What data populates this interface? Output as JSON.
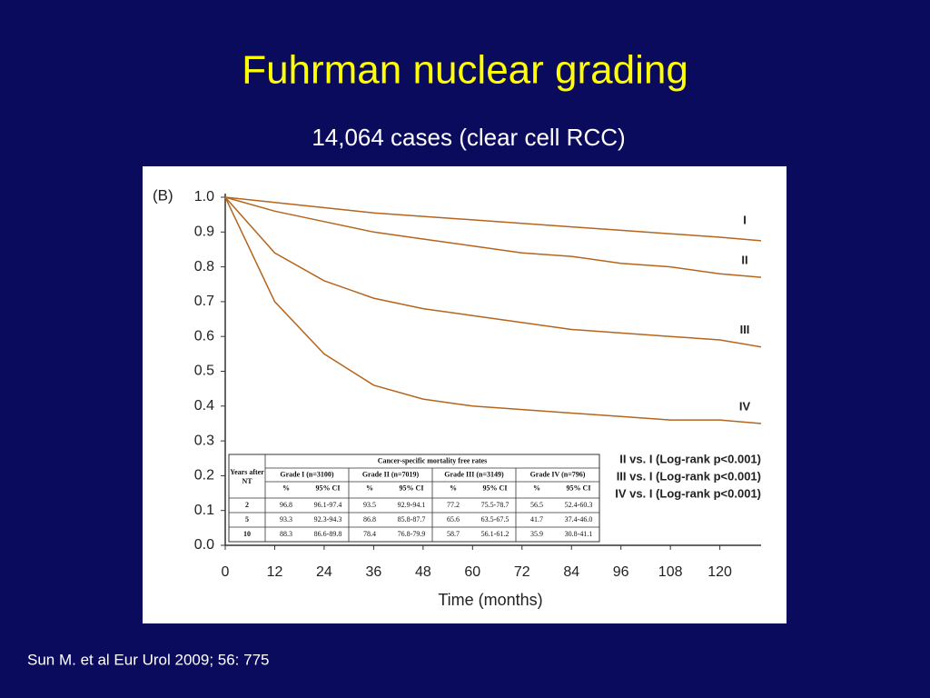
{
  "slide": {
    "title": "Fuhrman nuclear grading",
    "subtitle": "14,064 cases (clear cell RCC)",
    "citation": "Sun M. et al Eur Urol 2009; 56: 775"
  },
  "chart_data": {
    "type": "line",
    "panel_label": "(B)",
    "xlabel": "Time (months)",
    "x": [
      0,
      12,
      24,
      36,
      48,
      60,
      72,
      84,
      96,
      108,
      120,
      130
    ],
    "series": [
      {
        "name": "I",
        "color": "#b5651d",
        "values": [
          1.0,
          0.985,
          0.97,
          0.955,
          0.945,
          0.935,
          0.925,
          0.915,
          0.905,
          0.895,
          0.885,
          0.875
        ]
      },
      {
        "name": "II",
        "color": "#b5651d",
        "values": [
          1.0,
          0.96,
          0.93,
          0.9,
          0.88,
          0.86,
          0.84,
          0.83,
          0.81,
          0.8,
          0.78,
          0.77
        ]
      },
      {
        "name": "III",
        "color": "#b5651d",
        "values": [
          1.0,
          0.84,
          0.76,
          0.71,
          0.68,
          0.66,
          0.64,
          0.62,
          0.61,
          0.6,
          0.59,
          0.57
        ]
      },
      {
        "name": "IV",
        "color": "#b5651d",
        "values": [
          1.0,
          0.7,
          0.55,
          0.46,
          0.42,
          0.4,
          0.39,
          0.38,
          0.37,
          0.36,
          0.36,
          0.35
        ]
      }
    ],
    "xlim": [
      0,
      130
    ],
    "ylim": [
      0,
      1
    ],
    "xticks": [
      0,
      12,
      24,
      36,
      48,
      60,
      72,
      84,
      96,
      108,
      120
    ],
    "yticks": [
      {
        "value": 0,
        "label": "0.0"
      },
      0.1,
      0.2,
      0.3,
      0.4,
      0.5,
      0.6,
      0.7,
      0.8,
      0.9,
      {
        "value": 1,
        "label": "1.0"
      }
    ],
    "annotations": [
      "II vs. I (Log-rank p<0.001)",
      "III vs. I (Log-rank p<0.001)",
      "IV vs. I (Log-rank p<0.001)"
    ],
    "table": {
      "corner": "Years after NT",
      "title": "Cancer-specific mortality free rates",
      "groups": [
        "Grade I (n=3100)",
        "Grade II (n=7019)",
        "Grade III (n=3149)",
        "Grade IV (n=796)"
      ],
      "subheaders": [
        "%",
        "95% CI",
        "%",
        "95% CI",
        "%",
        "95% CI",
        "%",
        "95% CI"
      ],
      "rows": [
        [
          "2",
          "96.8",
          "96.1-97.4",
          "93.5",
          "92.9-94.1",
          "77.2",
          "75.5-78.7",
          "56.5",
          "52.4-60.3"
        ],
        [
          "5",
          "93.3",
          "92.3-94.3",
          "86.8",
          "85.8-87.7",
          "65.6",
          "63.5-67.5",
          "41.7",
          "37.4-46.0"
        ],
        [
          "10",
          "88.3",
          "86.6-89.8",
          "78.4",
          "76.8-79.9",
          "58.7",
          "56.1-61.2",
          "35.9",
          "30.8-41.1"
        ]
      ]
    }
  }
}
